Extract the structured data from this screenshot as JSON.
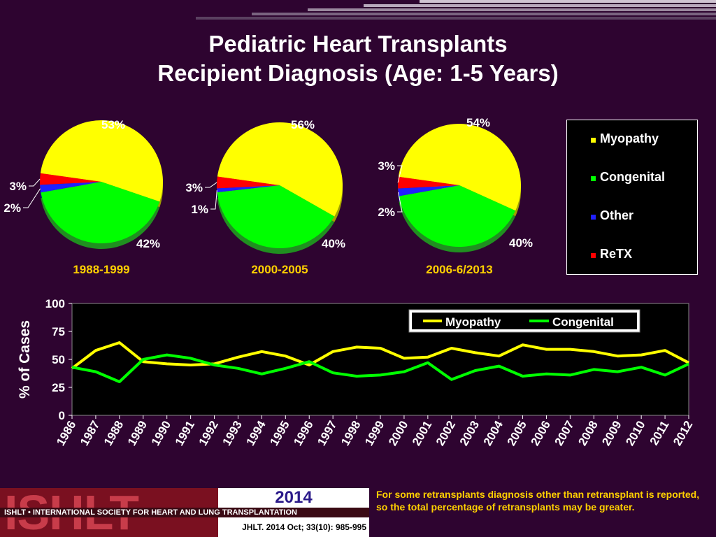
{
  "title": {
    "line1": "Pediatric Heart Transplants",
    "line2": "Recipient Diagnosis (Age: 1-5 Years)"
  },
  "colors": {
    "background": "#2e0430",
    "myopathy": "#ffff00",
    "congenital": "#00ff00",
    "other": "#2020ff",
    "retx": "#ff0000",
    "label_yellow": "#ffd000"
  },
  "legend": {
    "items": [
      "Myopathy",
      "Congenital",
      "Other",
      "ReTX"
    ]
  },
  "chart_data": [
    {
      "type": "pie",
      "title": "1988-1999",
      "slices": [
        {
          "name": "Myopathy",
          "value": 53,
          "label": "53%"
        },
        {
          "name": "Congenital",
          "value": 42,
          "label": "42%"
        },
        {
          "name": "Other",
          "value": 2,
          "label": "2%"
        },
        {
          "name": "ReTX",
          "value": 3,
          "label": "3%"
        }
      ]
    },
    {
      "type": "pie",
      "title": "2000-2005",
      "slices": [
        {
          "name": "Myopathy",
          "value": 56,
          "label": "56%"
        },
        {
          "name": "Congenital",
          "value": 40,
          "label": "40%"
        },
        {
          "name": "Other",
          "value": 1,
          "label": "1%"
        },
        {
          "name": "ReTX",
          "value": 3,
          "label": "3%"
        }
      ]
    },
    {
      "type": "pie",
      "title": "2006-6/2013",
      "slices": [
        {
          "name": "Myopathy",
          "value": 54,
          "label": "54%"
        },
        {
          "name": "Congenital",
          "value": 40,
          "label": "40%"
        },
        {
          "name": "Other",
          "value": 2,
          "label": "2%"
        },
        {
          "name": "ReTX",
          "value": 3,
          "label": "3%"
        }
      ]
    },
    {
      "type": "line",
      "ylabel": "% of Cases",
      "xlabel": "",
      "ylim": [
        0,
        100
      ],
      "yticks": [
        0,
        25,
        50,
        75,
        100
      ],
      "x": [
        "1986",
        "1987",
        "1988",
        "1989",
        "1990",
        "1991",
        "1992",
        "1993",
        "1994",
        "1995",
        "1996",
        "1997",
        "1998",
        "1999",
        "2000",
        "2001",
        "2002",
        "2003",
        "2004",
        "2005",
        "2006",
        "2007",
        "2008",
        "2009",
        "2010",
        "2011",
        "2012"
      ],
      "series": [
        {
          "name": "Myopathy",
          "values": [
            42,
            58,
            65,
            48,
            46,
            45,
            46,
            52,
            57,
            53,
            45,
            57,
            61,
            60,
            51,
            52,
            60,
            56,
            53,
            63,
            59,
            59,
            57,
            53,
            54,
            58,
            47
          ]
        },
        {
          "name": "Congenital",
          "values": [
            43,
            39,
            30,
            50,
            54,
            51,
            45,
            42,
            37,
            42,
            48,
            38,
            35,
            36,
            39,
            47,
            32,
            40,
            44,
            35,
            37,
            36,
            41,
            39,
            43,
            36,
            46
          ]
        }
      ],
      "grid": false,
      "legend": "top-right"
    }
  ],
  "footer": {
    "logo": "ISHLT",
    "society": "ISHLT • INTERNATIONAL SOCIETY FOR HEART AND LUNG TRANSPLANTATION",
    "year": "2014",
    "citation": "JHLT. 2014 Oct; 33(10): 985-995",
    "note": "For some retransplants diagnosis other than retransplant is reported, so the total percentage of retransplants may be greater."
  }
}
